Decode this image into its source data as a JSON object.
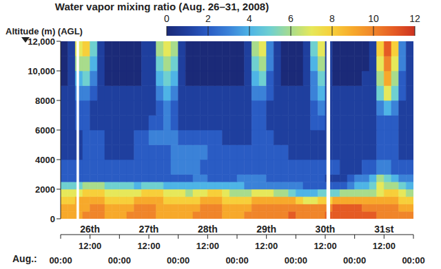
{
  "chart_data": {
    "type": "heatmap",
    "title": "Water vapor mixing ratio (Aug. 26–31, 2008)",
    "y_label": "Altitude (m) (AGL)",
    "xlim": [
      0,
      144
    ],
    "xticks": [
      {
        "value": 0,
        "label": "00:00"
      },
      {
        "value": 12,
        "label": "12:00"
      },
      {
        "value": 24,
        "label": "00:00"
      },
      {
        "value": 36,
        "label": "12:00"
      },
      {
        "value": 48,
        "label": "00:00"
      },
      {
        "value": 60,
        "label": "12:00"
      },
      {
        "value": 72,
        "label": "00:00"
      },
      {
        "value": 84,
        "label": "12:00"
      },
      {
        "value": 96,
        "label": "00:00"
      },
      {
        "value": 108,
        "label": "12:00"
      },
      {
        "value": 120,
        "label": "00:00"
      },
      {
        "value": 132,
        "label": "12:00"
      },
      {
        "value": 144,
        "label": "00:00"
      }
    ],
    "x_groups": {
      "label": "Aug.:",
      "ticks": [
        {
          "value": 12,
          "label": "26th"
        },
        {
          "value": 36,
          "label": "27th"
        },
        {
          "value": 60,
          "label": "28th"
        },
        {
          "value": 84,
          "label": "29th"
        },
        {
          "value": 108,
          "label": "30th"
        },
        {
          "value": 132,
          "label": "31st"
        }
      ]
    },
    "ylim": [
      0,
      12000
    ],
    "yticks": [
      0,
      2000,
      4000,
      6000,
      8000,
      {
        "value": 10000,
        "label": "10,000"
      },
      {
        "value": 12000,
        "label": "12,000"
      }
    ],
    "x_edges": [
      0,
      3,
      6,
      9,
      12,
      15,
      18,
      21,
      24,
      27,
      30,
      33,
      36,
      39,
      42,
      45,
      48,
      51,
      54,
      57,
      60,
      63,
      66,
      69,
      72,
      75,
      78,
      81,
      84,
      87,
      90,
      93,
      96,
      99,
      102,
      105,
      108,
      111,
      114,
      117,
      120,
      123,
      126,
      129,
      132,
      135,
      138,
      141,
      144
    ],
    "y_edges": [
      0,
      500,
      1000,
      1500,
      2000,
      2500,
      3000,
      4000,
      5000,
      6000,
      7000,
      8000,
      9000,
      10000,
      11000,
      12000
    ],
    "cells": [
      [
        9,
        9,
        9,
        10,
        10,
        10,
        9,
        9,
        9,
        10,
        10,
        10,
        10,
        9,
        9,
        9,
        9,
        9,
        10,
        10,
        10,
        10,
        9,
        9,
        9,
        10,
        10,
        10,
        10,
        10,
        10,
        11,
        10,
        10,
        10,
        10,
        11,
        11,
        11,
        11,
        11,
        11,
        11,
        10,
        10,
        10,
        10,
        10
      ],
      [
        9,
        9,
        9,
        9,
        10,
        10,
        9,
        9,
        9,
        9,
        10,
        10,
        10,
        9,
        9,
        9,
        9,
        9,
        9,
        10,
        10,
        10,
        9,
        9,
        9,
        9,
        10,
        10,
        10,
        10,
        10,
        10,
        10,
        10,
        10,
        10,
        10,
        11,
        11,
        11,
        11,
        10,
        10,
        10,
        10,
        10,
        9,
        9
      ],
      [
        8,
        8,
        9,
        9,
        9,
        9,
        8,
        8,
        8,
        8,
        9,
        9,
        9,
        9,
        8,
        8,
        8,
        8,
        8,
        9,
        9,
        9,
        8,
        8,
        8,
        8,
        9,
        9,
        9,
        9,
        9,
        9,
        8,
        7,
        7,
        8,
        8,
        9,
        9,
        9,
        9,
        9,
        9,
        9,
        9,
        9,
        8,
        8
      ],
      [
        7,
        7,
        7,
        8,
        8,
        8,
        7,
        7,
        7,
        7,
        7,
        8,
        8,
        8,
        7,
        7,
        7,
        6,
        7,
        7,
        8,
        8,
        7,
        6,
        6,
        6,
        7,
        7,
        7,
        6,
        6,
        5,
        4,
        4,
        4,
        5,
        5,
        5,
        6,
        6,
        6,
        6,
        6,
        7,
        8,
        8,
        7,
        6
      ],
      [
        5,
        5,
        5,
        6,
        6,
        6,
        5,
        5,
        5,
        5,
        4,
        5,
        5,
        5,
        4,
        4,
        4,
        4,
        4,
        4,
        4,
        4,
        4,
        4,
        4,
        3,
        3,
        3,
        3,
        3,
        3,
        3,
        3,
        2,
        2,
        2,
        2,
        2,
        2,
        3,
        4,
        4,
        5,
        7,
        6,
        6,
        5,
        4
      ],
      [
        2,
        2,
        2,
        2,
        2,
        2,
        2,
        2,
        2,
        2,
        2,
        2,
        2,
        2,
        2,
        2,
        2,
        2,
        3,
        3,
        2,
        2,
        2,
        2,
        3,
        3,
        3,
        3,
        2,
        2,
        2,
        2,
        2,
        2,
        2,
        2,
        1,
        1,
        1,
        2,
        3,
        3,
        4,
        6,
        5,
        4,
        3,
        3
      ],
      [
        2,
        2,
        2,
        2,
        2,
        2,
        2,
        2,
        2,
        2,
        2,
        2,
        2,
        2,
        2,
        3,
        3,
        3,
        3,
        2,
        2,
        2,
        2,
        2,
        2,
        2,
        2,
        2,
        2,
        2,
        2,
        2,
        2,
        2,
        2,
        2,
        2,
        2,
        1,
        1,
        1,
        2,
        2,
        3,
        3,
        2,
        2,
        2
      ],
      [
        1,
        1,
        1,
        2,
        2,
        2,
        1,
        1,
        1,
        1,
        2,
        2,
        2,
        2,
        2,
        3,
        3,
        3,
        3,
        3,
        2,
        2,
        2,
        2,
        2,
        2,
        2,
        2,
        2,
        2,
        2,
        1,
        1,
        1,
        1,
        1,
        1,
        1,
        1,
        1,
        1,
        1,
        1,
        2,
        2,
        2,
        1,
        1
      ],
      [
        1,
        1,
        1,
        2,
        2,
        2,
        1,
        1,
        1,
        1,
        2,
        2,
        3,
        3,
        3,
        3,
        2,
        2,
        2,
        2,
        2,
        2,
        1,
        1,
        1,
        1,
        2,
        2,
        2,
        1,
        1,
        1,
        1,
        1,
        1,
        1,
        1,
        1,
        1,
        1,
        1,
        1,
        1,
        2,
        2,
        2,
        1,
        1
      ],
      [
        1,
        1,
        2,
        2,
        1,
        1,
        1,
        1,
        1,
        1,
        1,
        1,
        2,
        2,
        3,
        2,
        1,
        1,
        1,
        1,
        1,
        1,
        1,
        1,
        1,
        1,
        2,
        2,
        1,
        1,
        1,
        1,
        1,
        1,
        2,
        2,
        1,
        1,
        1,
        1,
        1,
        1,
        1,
        2,
        2,
        2,
        1,
        1
      ],
      [
        1,
        1,
        2,
        2,
        1,
        1,
        1,
        1,
        1,
        1,
        1,
        1,
        1,
        2,
        3,
        2,
        1,
        1,
        1,
        1,
        1,
        1,
        1,
        1,
        1,
        1,
        2,
        2,
        1,
        1,
        1,
        1,
        1,
        1,
        2,
        3,
        1,
        1,
        1,
        1,
        1,
        1,
        1,
        3,
        4,
        3,
        1,
        1
      ],
      [
        1,
        1,
        3,
        3,
        2,
        1,
        1,
        1,
        1,
        1,
        1,
        1,
        1,
        3,
        4,
        3,
        1,
        1,
        1,
        1,
        1,
        1,
        1,
        1,
        1,
        1,
        3,
        3,
        2,
        1,
        1,
        1,
        1,
        1,
        3,
        4,
        1,
        1,
        1,
        1,
        1,
        1,
        1,
        5,
        7,
        5,
        2,
        1
      ],
      [
        0,
        1,
        4,
        5,
        3,
        1,
        0,
        0,
        0,
        0,
        0,
        1,
        1,
        4,
        5,
        4,
        1,
        0,
        0,
        0,
        0,
        0,
        0,
        0,
        0,
        1,
        4,
        5,
        2,
        1,
        0,
        0,
        0,
        1,
        3,
        5,
        1,
        0,
        0,
        0,
        0,
        1,
        1,
        6,
        9,
        6,
        2,
        1
      ],
      [
        0,
        1,
        6,
        6,
        4,
        1,
        0,
        0,
        0,
        0,
        0,
        1,
        1,
        5,
        6,
        5,
        1,
        0,
        0,
        0,
        0,
        0,
        0,
        0,
        0,
        1,
        5,
        6,
        3,
        1,
        0,
        0,
        0,
        1,
        4,
        6,
        1,
        0,
        0,
        0,
        0,
        0,
        1,
        7,
        10,
        7,
        3,
        1
      ],
      [
        0,
        1,
        7,
        8,
        5,
        1,
        0,
        0,
        0,
        0,
        0,
        1,
        1,
        6,
        7,
        6,
        1,
        0,
        0,
        0,
        0,
        0,
        0,
        0,
        0,
        1,
        6,
        7,
        3,
        1,
        0,
        0,
        0,
        1,
        5,
        7,
        1,
        0,
        0,
        0,
        0,
        0,
        1,
        8,
        11,
        8,
        3,
        1
      ]
    ],
    "no_data": [
      [
        6.5,
        7.5
      ],
      [
        108.5,
        110
      ]
    ],
    "colorbar": {
      "range": [
        0,
        12
      ],
      "ticks": [
        0,
        2,
        4,
        6,
        8,
        10,
        12
      ]
    }
  }
}
